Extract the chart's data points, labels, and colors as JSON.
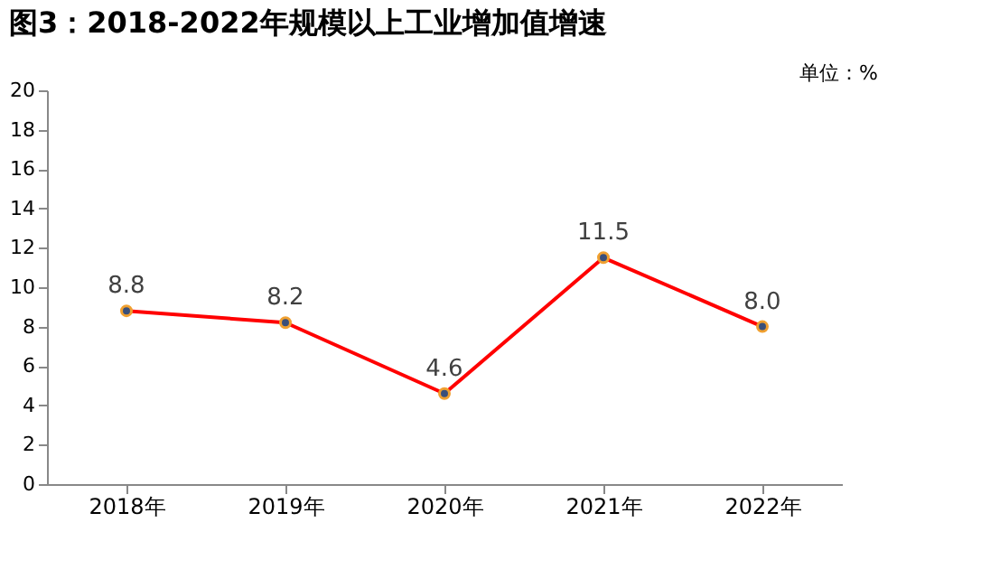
{
  "chart_data": {
    "type": "line",
    "title": "图3：2018-2022年规模以上工业增加值增速",
    "annotations": [
      "单位：%"
    ],
    "categories": [
      "2018年",
      "2019年",
      "2020年",
      "2021年",
      "2022年"
    ],
    "series": [
      {
        "color": "#ff0000",
        "values": [
          8.8,
          8.2,
          4.6,
          11.5,
          8.0
        ]
      }
    ],
    "value_labels": [
      "8.8",
      "8.2",
      "4.6",
      "11.5",
      "8.0"
    ],
    "ylim": [
      0,
      20
    ],
    "yticks": [
      0,
      2,
      4,
      6,
      8,
      10,
      12,
      14,
      16,
      18,
      20
    ],
    "grid": false,
    "marker": "circle",
    "line_style": "solid"
  }
}
